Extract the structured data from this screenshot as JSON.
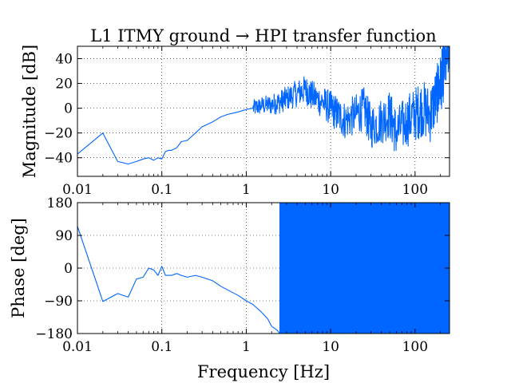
{
  "chart_data": [
    {
      "type": "line",
      "title": "L1 ITMY ground → HPI transfer function",
      "xlabel": "",
      "ylabel": "Magnitude [dB]",
      "xscale": "log",
      "xlim": [
        0.01,
        256
      ],
      "ylim": [
        -55,
        50
      ],
      "grid": true,
      "xticks": [
        0.01,
        0.1,
        1,
        10,
        100
      ],
      "xtick_labels": [
        "0.01",
        "0.1",
        "1",
        "10",
        "100"
      ],
      "yticks": [
        40,
        20,
        0,
        -20,
        -40
      ],
      "ytick_labels": [
        "40",
        "20",
        "0",
        "−20",
        "−40"
      ],
      "color": "#0066ff",
      "series": [
        {
          "name": "",
          "x": [
            0.01,
            0.02,
            0.03,
            0.04,
            0.05,
            0.06,
            0.07,
            0.08,
            0.09,
            0.1,
            0.11,
            0.12,
            0.13,
            0.15,
            0.17,
            0.2,
            0.25,
            0.3,
            0.4,
            0.5,
            0.6,
            0.7,
            0.8,
            0.9,
            1.0,
            1.2,
            1.5,
            2,
            2.5,
            3,
            4,
            5,
            6,
            8,
            10,
            12,
            15,
            20,
            25,
            30,
            40,
            50,
            60,
            80,
            100,
            120,
            150,
            180,
            200,
            220,
            256
          ],
          "y": [
            -37,
            -20,
            -43,
            -45,
            -43,
            -41,
            -40,
            -42,
            -40,
            -41,
            -35,
            -34,
            -34,
            -32,
            -27,
            -26,
            -20,
            -15,
            -11,
            -7,
            -5,
            -4,
            -3,
            -2,
            -1,
            0,
            2,
            3,
            5,
            8,
            12,
            15,
            10,
            5,
            0,
            -5,
            -10,
            -5,
            0,
            -15,
            -10,
            -5,
            -20,
            -10,
            -5,
            0,
            -5,
            10,
            20,
            30,
            50
          ]
        }
      ]
    },
    {
      "type": "line",
      "title": "",
      "xlabel": "Frequency [Hz]",
      "ylabel": "Phase [deg]",
      "xscale": "log",
      "xlim": [
        0.01,
        256
      ],
      "ylim": [
        -180,
        180
      ],
      "grid": true,
      "xticks": [
        0.01,
        0.1,
        1,
        10,
        100
      ],
      "xtick_labels": [
        "0.01",
        "0.1",
        "1",
        "10",
        "100"
      ],
      "yticks": [
        180,
        90,
        0,
        -90,
        -180
      ],
      "ytick_labels": [
        "180",
        "90",
        "0",
        "−90",
        "−180"
      ],
      "color": "#0066ff",
      "series": [
        {
          "name": "",
          "x": [
            0.01,
            0.02,
            0.03,
            0.04,
            0.05,
            0.06,
            0.07,
            0.08,
            0.09,
            0.1,
            0.11,
            0.13,
            0.15,
            0.17,
            0.2,
            0.25,
            0.3,
            0.4,
            0.5,
            0.6,
            0.8,
            1.0,
            1.2,
            1.5,
            1.8,
            2.0,
            2.3,
            2.5
          ],
          "y": [
            115,
            -92,
            -70,
            -80,
            -30,
            -25,
            0,
            -5,
            -20,
            5,
            -20,
            -20,
            -15,
            -20,
            -25,
            -20,
            -25,
            -35,
            -50,
            -60,
            -75,
            -90,
            -100,
            -120,
            -140,
            -160,
            -170,
            -180
          ]
        }
      ],
      "wrapped_region": {
        "x_from": 2.5,
        "x_to": 256,
        "y_from": -180,
        "y_to": 180
      }
    }
  ]
}
